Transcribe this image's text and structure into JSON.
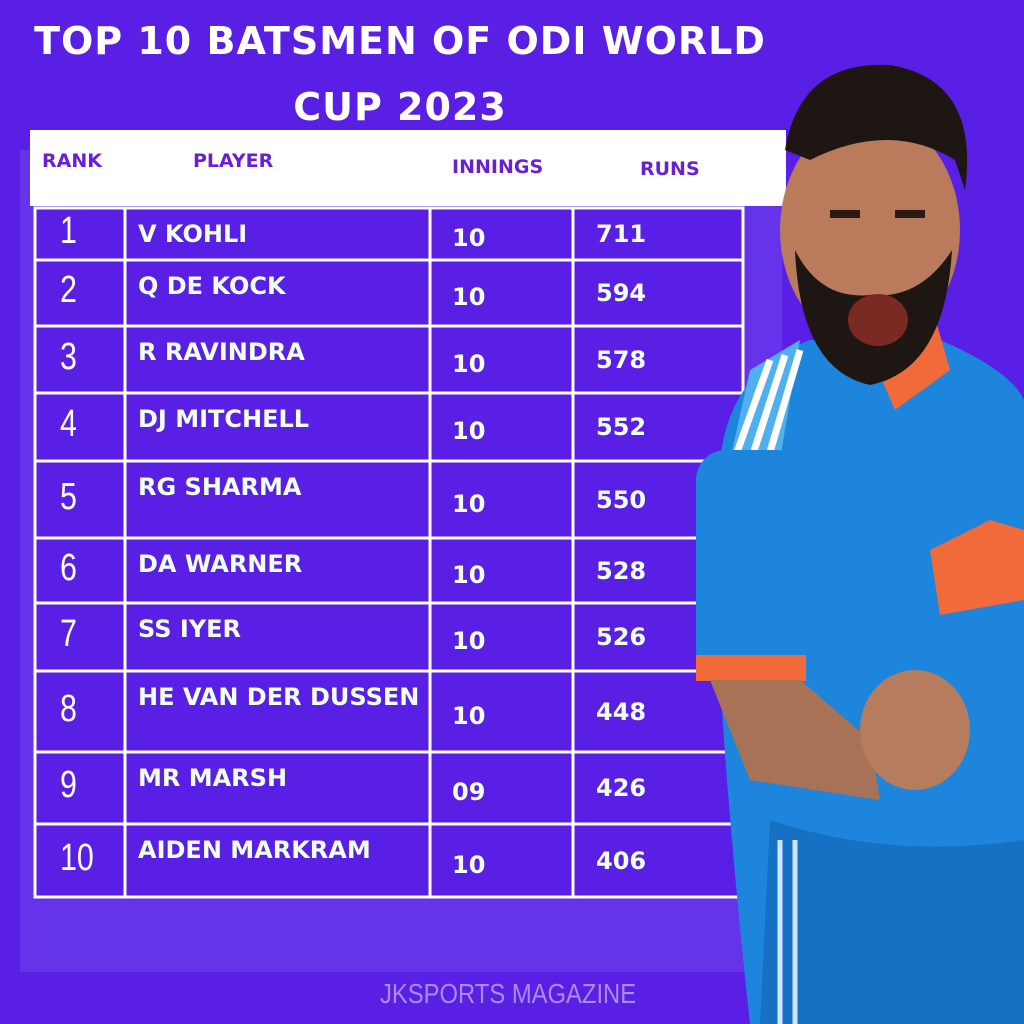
{
  "header": {
    "title": "TOP 10 BATSMEN OF ODI WORLD CUP 2023"
  },
  "table": {
    "columns": [
      "RANK",
      "PLAYER",
      "INNINGS",
      "RUNS"
    ],
    "rows": [
      [
        "1",
        "V KOHLI",
        "10",
        "711"
      ],
      [
        "2",
        "Q DE KOCK",
        "10",
        "594"
      ],
      [
        "3",
        "R RAVINDRA",
        "10",
        "578"
      ],
      [
        "4",
        "DJ MITCHELL",
        "10",
        "552"
      ],
      [
        "5",
        "RG SHARMA",
        "10",
        "550"
      ],
      [
        "6",
        "DA WARNER",
        "10",
        "528"
      ],
      [
        "7",
        "SS IYER",
        "10",
        "526"
      ],
      [
        "8",
        "HE VAN DER DUSSEN",
        "10",
        "448"
      ],
      [
        "9",
        "MR MARSH",
        "09",
        "426"
      ],
      [
        "10",
        "AIDEN MARKRAM",
        "10",
        "406"
      ]
    ]
  },
  "footer": {
    "credit": "JKSPORTS MAGAZINE"
  }
}
